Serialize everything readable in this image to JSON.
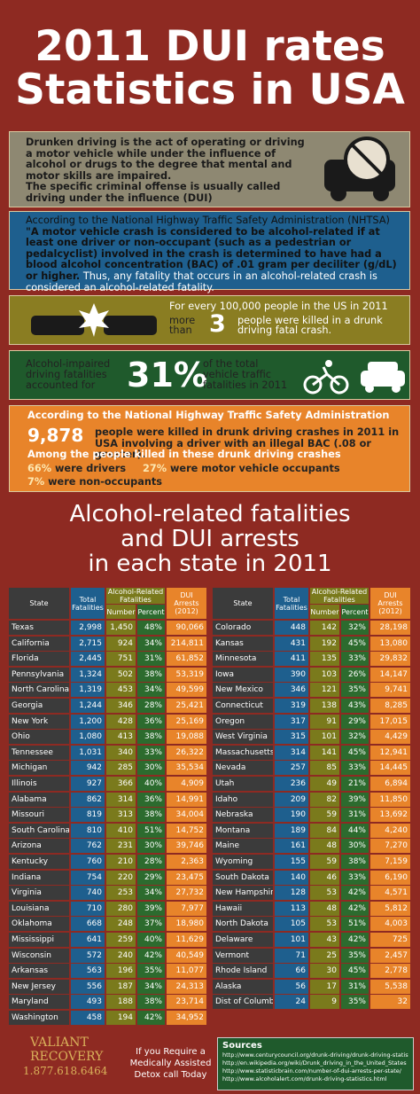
{
  "header": {
    "title_line1": "2011 DUI rates",
    "title_line2": "Statistics in USA"
  },
  "definition": {
    "text": "Drunken driving is the act of operating or driving a motor vehicle while under the influence of alcohol or drugs to the degree that mental and motor skills are impaired.",
    "text2": "The specific criminal offense is usually called driving under the influence (DUI)"
  },
  "nhtsa": {
    "intro": "According to the National Highway Traffic Safety Administration (NHTSA)",
    "quote": "\"A motor vehicle crash is considered to be alcohol-related if at least one driver or non-occupant (such as a pedestrian or pedalcyclist) involved in the crash is determined to have had a blood alcohol concentration (BAC) of .01 gram per deciliter (g/dL) or higher.",
    "conclusion": "Thus, any fatality that occurs in an alcohol-related crash is considered an alcohol-related fatality."
  },
  "per_capita": {
    "line1": "For every 100,000 people in the US in 2011",
    "prefix": "more than",
    "number": "3",
    "suffix": "people were killed in a drunk driving fatal crash."
  },
  "share": {
    "prefix": "Alcohol-impaired driving fatalities accounted for",
    "number": "31%",
    "suffix": "of the total vehicle traffic fatalities in 2011"
  },
  "killed": {
    "intro": "According to the National Highway Traffic Safety Administration",
    "number": "9,878",
    "text": "people were killed in drunk driving crashes in 2011 in USA involving a driver with an illegal BAC (.08 or greater).",
    "among": "Among the people killed in these drunk driving crashes",
    "drivers_pct": "66%",
    "drivers": "were drivers",
    "occupants_pct": "27%",
    "occupants": "were motor vehicle occupants",
    "non_pct": "7%",
    "non": "were non-occupants"
  },
  "section_title": {
    "line1": "Alcohol-related fatalities",
    "line2": "and DUI arrests",
    "line3": "in each state in 2011"
  },
  "table": {
    "headers": [
      "State",
      "Total Fatalities",
      "Alcohol-Related Fatalities",
      "Number",
      "Percent",
      "DUI Arrests (2012)"
    ],
    "left": [
      [
        "Texas",
        "2,998",
        "1,450",
        "48%",
        "90,066"
      ],
      [
        "California",
        "2,715",
        "924",
        "34%",
        "214,811"
      ],
      [
        "Florida",
        "2,445",
        "751",
        "31%",
        "61,852"
      ],
      [
        "Pennsylvania",
        "1,324",
        "502",
        "38%",
        "53,319"
      ],
      [
        "North Carolina",
        "1,319",
        "453",
        "34%",
        "49,599"
      ],
      [
        "Georgia",
        "1,244",
        "346",
        "28%",
        "25,421"
      ],
      [
        "New York",
        "1,200",
        "428",
        "36%",
        "25,169"
      ],
      [
        "Ohio",
        "1,080",
        "413",
        "38%",
        "19,088"
      ],
      [
        "Tennessee",
        "1,031",
        "340",
        "33%",
        "26,322"
      ],
      [
        "Michigan",
        "942",
        "285",
        "30%",
        "35,534"
      ],
      [
        "Illinois",
        "927",
        "366",
        "40%",
        "4,909"
      ],
      [
        "Alabama",
        "862",
        "314",
        "36%",
        "14,991"
      ],
      [
        "Missouri",
        "819",
        "313",
        "38%",
        "34,004"
      ],
      [
        "South Carolina",
        "810",
        "410",
        "51%",
        "14,752"
      ],
      [
        "Arizona",
        "762",
        "231",
        "30%",
        "39,746"
      ],
      [
        "Kentucky",
        "760",
        "210",
        "28%",
        "2,363"
      ],
      [
        "Indiana",
        "754",
        "220",
        "29%",
        "23,475"
      ],
      [
        "Virginia",
        "740",
        "253",
        "34%",
        "27,732"
      ],
      [
        "Louisiana",
        "710",
        "280",
        "39%",
        "7,977"
      ],
      [
        "Oklahoma",
        "668",
        "248",
        "37%",
        "18,980"
      ],
      [
        "Mississippi",
        "641",
        "259",
        "40%",
        "11,629"
      ],
      [
        "Wisconsin",
        "572",
        "240",
        "42%",
        "40,549"
      ],
      [
        "Arkansas",
        "563",
        "196",
        "35%",
        "11,077"
      ],
      [
        "New Jersey",
        "556",
        "187",
        "34%",
        "24,313"
      ],
      [
        "Maryland",
        "493",
        "188",
        "38%",
        "23,714"
      ],
      [
        "Washington",
        "458",
        "194",
        "42%",
        "34,952"
      ]
    ],
    "right": [
      [
        "Colorado",
        "448",
        "142",
        "32%",
        "28,198"
      ],
      [
        "Kansas",
        "431",
        "192",
        "45%",
        "13,080"
      ],
      [
        "Minnesota",
        "411",
        "135",
        "33%",
        "29,832"
      ],
      [
        "Iowa",
        "390",
        "103",
        "26%",
        "14,147"
      ],
      [
        "New Mexico",
        "346",
        "121",
        "35%",
        "9,741"
      ],
      [
        "Connecticut",
        "319",
        "138",
        "43%",
        "8,285"
      ],
      [
        "Oregon",
        "317",
        "91",
        "29%",
        "17,015"
      ],
      [
        "West Virginia",
        "315",
        "101",
        "32%",
        "4,429"
      ],
      [
        "Massachusetts",
        "314",
        "141",
        "45%",
        "12,941"
      ],
      [
        "Nevada",
        "257",
        "85",
        "33%",
        "14,445"
      ],
      [
        "Utah",
        "236",
        "49",
        "21%",
        "6,894"
      ],
      [
        "Idaho",
        "209",
        "82",
        "39%",
        "11,850"
      ],
      [
        "Nebraska",
        "190",
        "59",
        "31%",
        "13,692"
      ],
      [
        "Montana",
        "189",
        "84",
        "44%",
        "4,240"
      ],
      [
        "Maine",
        "161",
        "48",
        "30%",
        "7,270"
      ],
      [
        "Wyoming",
        "155",
        "59",
        "38%",
        "7,159"
      ],
      [
        "South Dakota",
        "140",
        "46",
        "33%",
        "6,190"
      ],
      [
        "New Hampshire",
        "128",
        "53",
        "42%",
        "4,571"
      ],
      [
        "Hawaii",
        "113",
        "48",
        "42%",
        "5,812"
      ],
      [
        "North Dakota",
        "105",
        "53",
        "51%",
        "4,003"
      ],
      [
        "Delaware",
        "101",
        "43",
        "42%",
        "725"
      ],
      [
        "Vermont",
        "71",
        "25",
        "35%",
        "2,457"
      ],
      [
        "Rhode Island",
        "66",
        "30",
        "45%",
        "2,778"
      ],
      [
        "Alaska",
        "56",
        "17",
        "31%",
        "5,538"
      ],
      [
        "Dist of Columbia",
        "24",
        "9",
        "35%",
        "32"
      ]
    ]
  },
  "footer": {
    "brand1": "VALIANT",
    "brand2": "RECOVERY",
    "phone": "1.877.618.6464",
    "cta": "If you Require a Medically Assisted Detox call Today",
    "sources_title": "Sources",
    "sources": [
      "http://www.centurycouncil.org/drunk-driving/drunk-driving-statistics",
      "http://en.wikipedia.org/wiki/Drunk_driving_in_the_United_States",
      "http://www.statisticbrain.com/number-of-dui-arrests-per-state/",
      "http://www.alcoholalert.com/drunk-driving-statistics.html"
    ]
  }
}
